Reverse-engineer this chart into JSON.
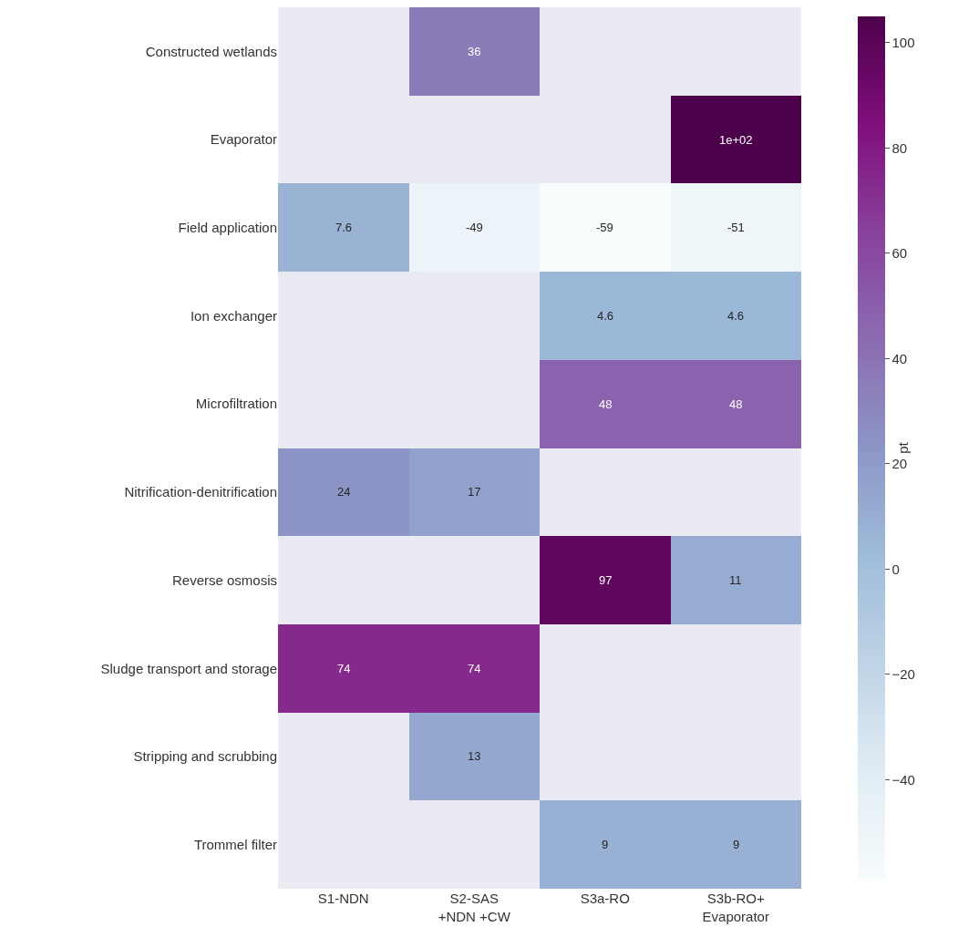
{
  "chart_data": {
    "type": "heatmap",
    "categories": [
      "S1-NDN",
      "S2-SAS\n+NDN +CW",
      "S3a-RO",
      "S3b-RO+\nEvaporator"
    ],
    "y_categories": [
      "Constructed wetlands",
      "Evaporator",
      "Field application",
      "Ion exchanger",
      "Microfiltration",
      "Nitrification-denitrification",
      "Reverse osmosis",
      "Sludge transport and storage",
      "Stripping and scrubbing",
      "Trommel filter"
    ],
    "cells": [
      [
        null,
        36,
        null,
        null
      ],
      [
        null,
        null,
        null,
        105
      ],
      [
        7.6,
        -49,
        -59,
        -51
      ],
      [
        null,
        null,
        4.6,
        4.6
      ],
      [
        null,
        null,
        48,
        48
      ],
      [
        24,
        17,
        null,
        null
      ],
      [
        null,
        null,
        97,
        11
      ],
      [
        74,
        74,
        null,
        null
      ],
      [
        null,
        13,
        null,
        null
      ],
      [
        null,
        null,
        9,
        9
      ]
    ],
    "cell_labels": [
      [
        null,
        "36",
        null,
        null
      ],
      [
        null,
        null,
        null,
        "1e+02"
      ],
      [
        "7.6",
        "-49",
        "-59",
        "-51"
      ],
      [
        null,
        null,
        "4.6",
        "4.6"
      ],
      [
        null,
        null,
        "48",
        "48"
      ],
      [
        "24",
        "17",
        null,
        null
      ],
      [
        null,
        null,
        "97",
        "11"
      ],
      [
        "74",
        "74",
        null,
        null
      ],
      [
        null,
        "13",
        null,
        null
      ],
      [
        null,
        null,
        "9",
        "9"
      ]
    ],
    "clabel": "pt",
    "clim": [
      -59,
      105
    ],
    "cticks": [
      {
        "value": -40,
        "label": "−40"
      },
      {
        "value": -20,
        "label": "−20"
      },
      0,
      20,
      40,
      60,
      80,
      100
    ],
    "colors": [
      "#f7fcfd",
      "#e0ecf4",
      "#bfd3e6",
      "#9ebcda",
      "#8c96c6",
      "#8c6bb1",
      "#88419d",
      "#810f7c",
      "#4d004b"
    ]
  }
}
